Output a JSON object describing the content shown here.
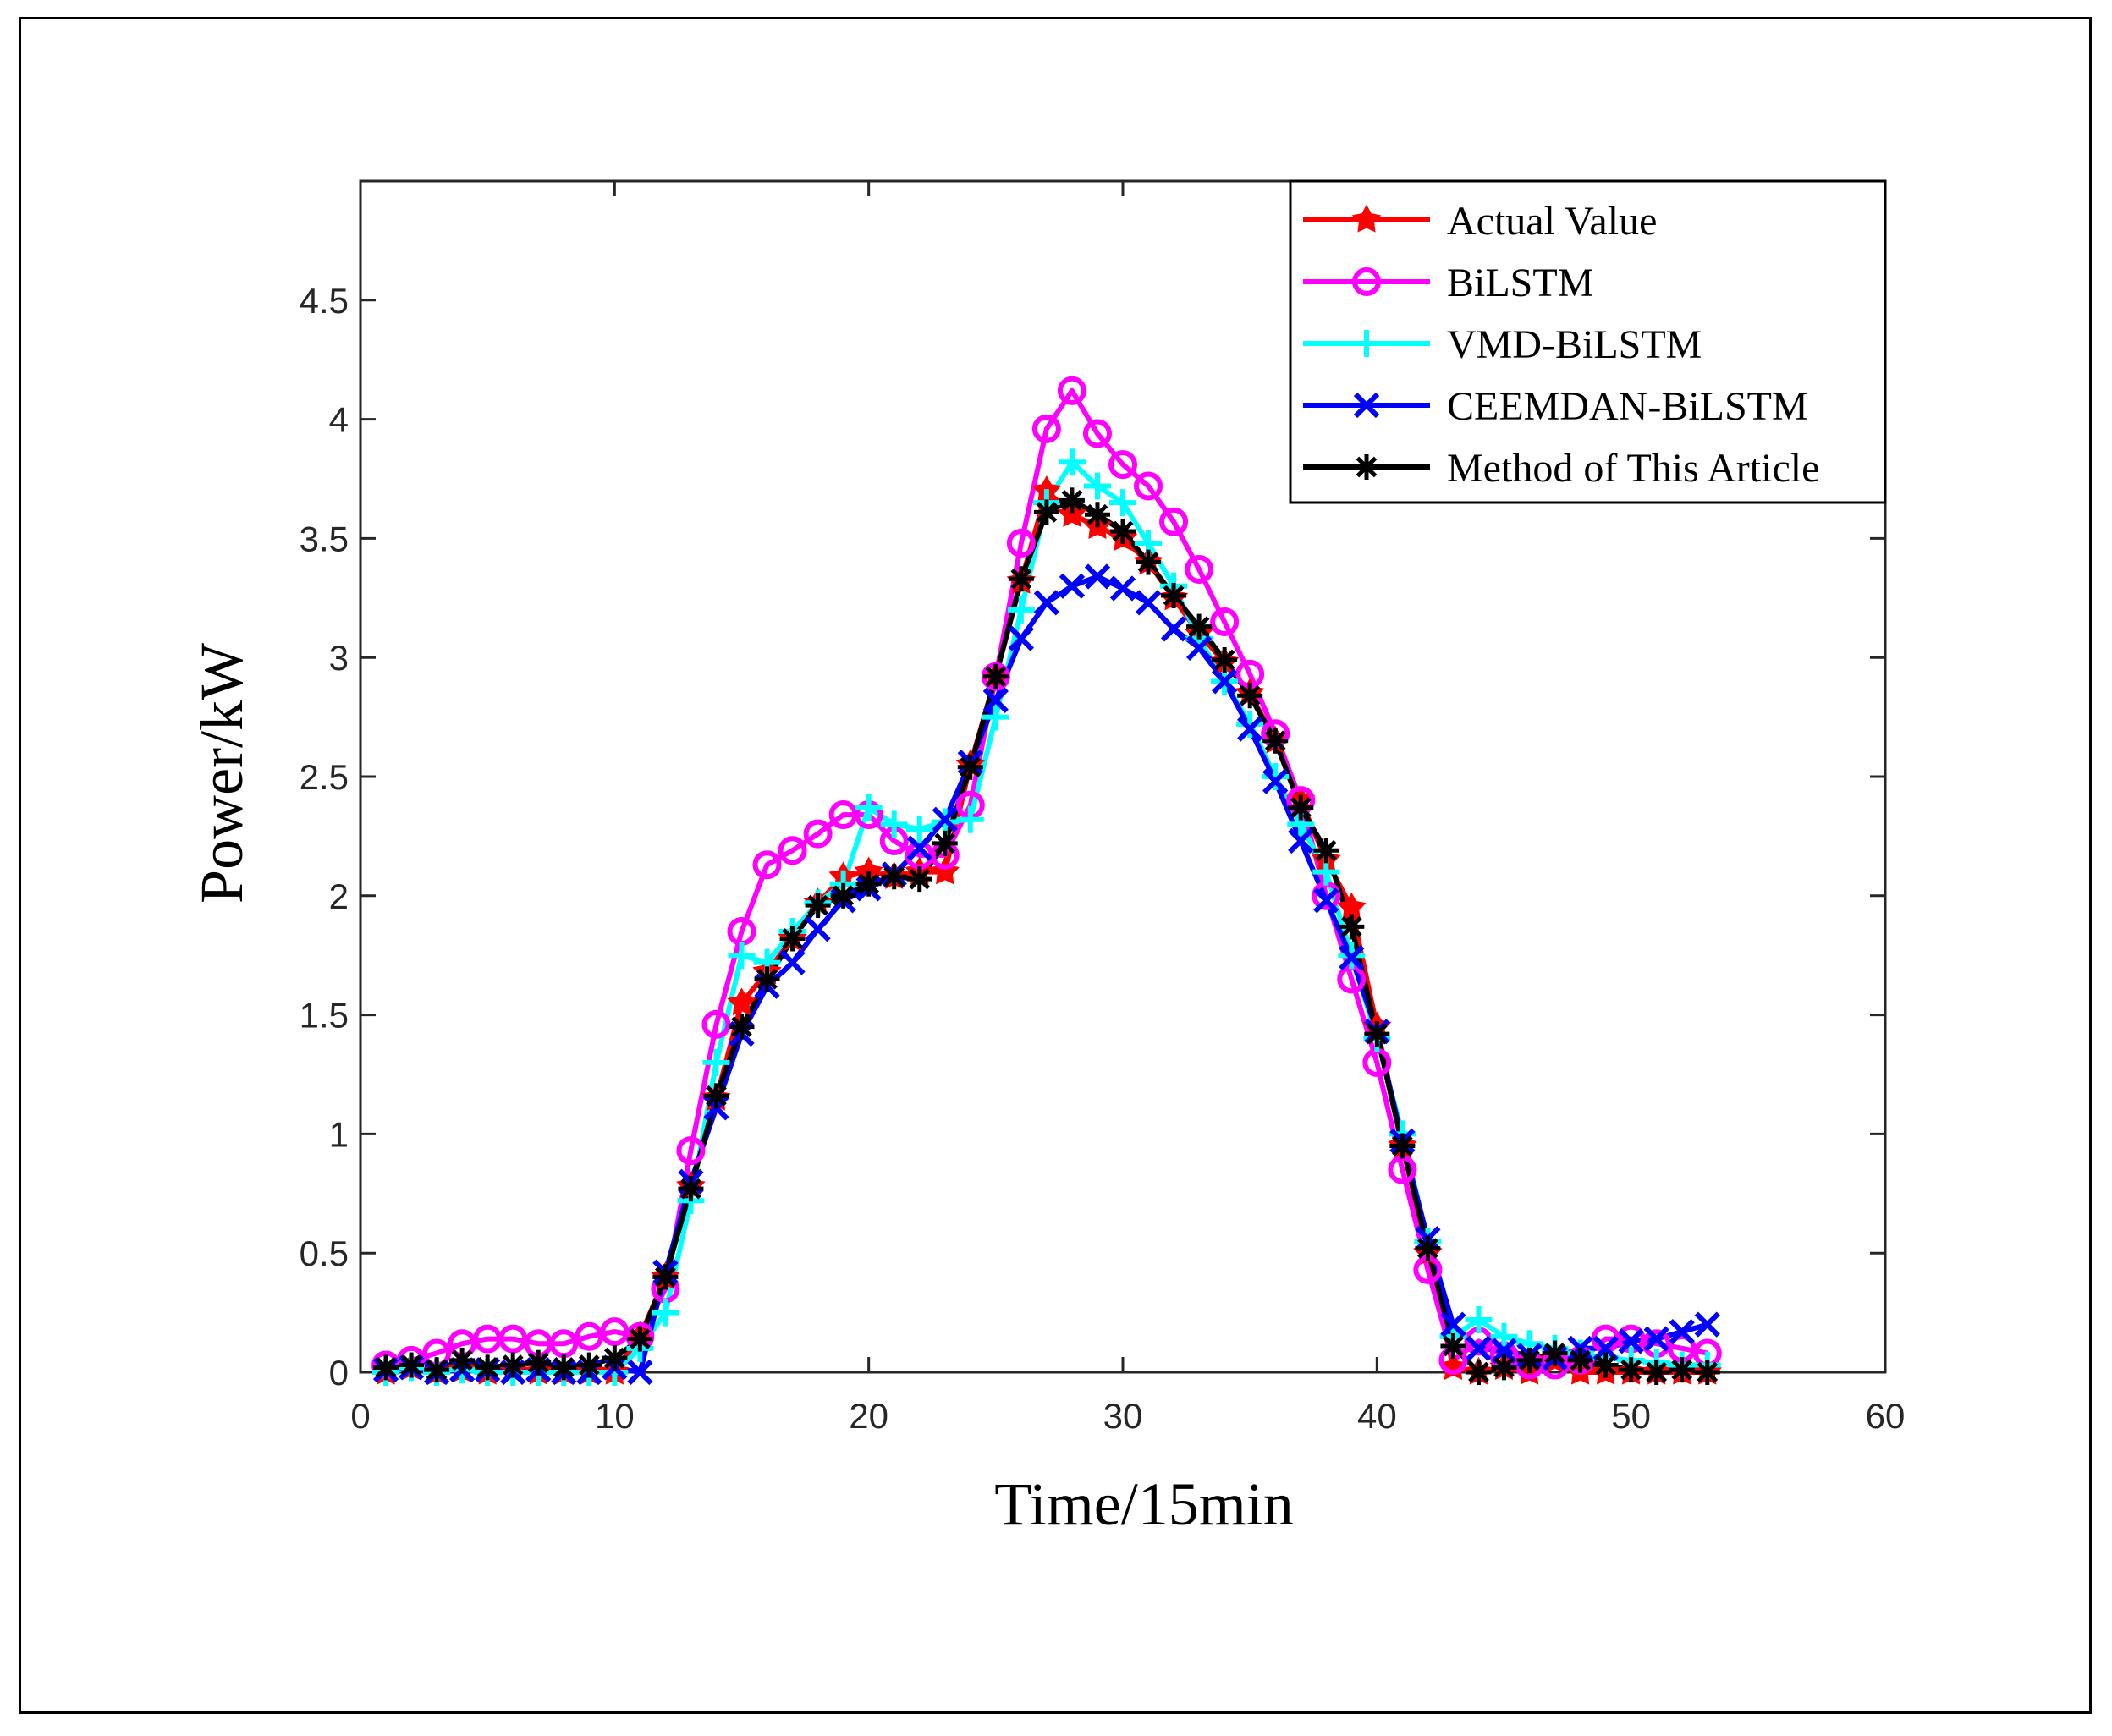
{
  "chart_data": {
    "type": "line",
    "xlabel": "Time/15min",
    "ylabel": "Power/kW",
    "xlim": [
      0,
      60
    ],
    "ylim": [
      0,
      5
    ],
    "xticks": [
      0,
      10,
      20,
      30,
      40,
      50,
      60
    ],
    "yticks": [
      0,
      0.5,
      1,
      1.5,
      2,
      2.5,
      3,
      3.5,
      4,
      4.5
    ],
    "ytick_labels": [
      "0",
      "0.5",
      "1",
      "1.5",
      "2",
      "2.5",
      "3",
      "3.5",
      "4",
      "4.5"
    ],
    "grid": false,
    "legend_position": "top-right",
    "x": [
      1,
      2,
      3,
      4,
      5,
      6,
      7,
      8,
      9,
      10,
      11,
      12,
      13,
      14,
      15,
      16,
      17,
      18,
      19,
      20,
      21,
      22,
      23,
      24,
      25,
      26,
      27,
      28,
      29,
      30,
      31,
      32,
      33,
      34,
      35,
      36,
      37,
      38,
      39,
      40,
      41,
      42,
      43,
      44,
      45,
      46,
      47,
      48,
      49,
      50,
      51,
      52,
      53
    ],
    "series": [
      {
        "name": "Actual Value",
        "color": "#ff0000",
        "marker": "star-filled",
        "values": [
          0.0,
          0.02,
          0.0,
          0.01,
          0.0,
          0.01,
          0.0,
          0.0,
          0.0,
          0.0,
          0.15,
          0.4,
          0.78,
          1.15,
          1.55,
          1.68,
          1.82,
          1.97,
          2.08,
          2.1,
          2.08,
          2.1,
          2.1,
          2.55,
          2.92,
          3.32,
          3.7,
          3.6,
          3.55,
          3.5,
          3.4,
          3.25,
          3.1,
          2.98,
          2.85,
          2.65,
          2.4,
          2.15,
          1.95,
          1.45,
          0.95,
          0.5,
          0.02,
          0.0,
          0.02,
          0.0,
          0.05,
          0.0,
          0.0,
          0.0,
          0.0,
          0.0,
          0.0
        ]
      },
      {
        "name": "BiLSTM",
        "color": "#ff00ff",
        "marker": "circle",
        "values": [
          0.03,
          0.05,
          0.08,
          0.12,
          0.14,
          0.14,
          0.12,
          0.12,
          0.15,
          0.17,
          0.15,
          0.35,
          0.93,
          1.46,
          1.85,
          2.13,
          2.19,
          2.26,
          2.34,
          2.34,
          2.23,
          2.17,
          2.17,
          2.38,
          2.92,
          3.48,
          3.96,
          4.12,
          3.94,
          3.81,
          3.72,
          3.57,
          3.37,
          3.15,
          2.93,
          2.68,
          2.4,
          2.0,
          1.65,
          1.3,
          0.85,
          0.43,
          0.05,
          0.13,
          0.07,
          0.03,
          0.03,
          0.05,
          0.14,
          0.14,
          0.12,
          0.1,
          0.08
        ]
      },
      {
        "name": "VMD-BiLSTM",
        "color": "#00ffff",
        "marker": "plus",
        "values": [
          0.0,
          0.02,
          0.0,
          0.01,
          0.0,
          0.0,
          0.0,
          0.0,
          0.0,
          0.0,
          0.1,
          0.25,
          0.72,
          1.3,
          1.75,
          1.72,
          1.85,
          1.97,
          2.05,
          2.37,
          2.3,
          2.28,
          2.31,
          2.32,
          2.75,
          3.2,
          3.65,
          3.82,
          3.72,
          3.65,
          3.48,
          3.3,
          3.08,
          2.9,
          2.72,
          2.5,
          2.3,
          2.1,
          1.75,
          1.4,
          1.0,
          0.55,
          0.15,
          0.22,
          0.15,
          0.12,
          0.1,
          0.08,
          0.06,
          0.05,
          0.04,
          0.03,
          0.03
        ]
      },
      {
        "name": "CEEMDAN-BiLSTM",
        "color": "#0000ff",
        "marker": "x",
        "values": [
          0.01,
          0.02,
          0.0,
          0.01,
          0.01,
          0.0,
          0.01,
          0.0,
          0.0,
          0.02,
          0.0,
          0.42,
          0.8,
          1.11,
          1.42,
          1.62,
          1.72,
          1.86,
          1.98,
          2.03,
          2.09,
          2.2,
          2.32,
          2.56,
          2.82,
          3.08,
          3.23,
          3.3,
          3.34,
          3.29,
          3.23,
          3.12,
          3.04,
          2.9,
          2.7,
          2.48,
          2.23,
          1.98,
          1.74,
          1.43,
          0.97,
          0.56,
          0.2,
          0.1,
          0.09,
          0.07,
          0.06,
          0.1,
          0.1,
          0.13,
          0.14,
          0.17,
          0.2
        ]
      },
      {
        "name": "Method of This Article",
        "color": "#000000",
        "marker": "asterisk",
        "values": [
          0.02,
          0.03,
          0.01,
          0.05,
          0.02,
          0.03,
          0.04,
          0.02,
          0.03,
          0.06,
          0.14,
          0.4,
          0.77,
          1.16,
          1.45,
          1.65,
          1.82,
          1.96,
          2.0,
          2.05,
          2.08,
          2.07,
          2.22,
          2.54,
          2.92,
          3.33,
          3.61,
          3.66,
          3.6,
          3.53,
          3.4,
          3.26,
          3.13,
          2.99,
          2.84,
          2.65,
          2.37,
          2.19,
          1.87,
          1.42,
          0.95,
          0.52,
          0.11,
          0.0,
          0.02,
          0.05,
          0.08,
          0.05,
          0.03,
          0.01,
          0.0,
          0.01,
          0.0
        ]
      }
    ]
  }
}
